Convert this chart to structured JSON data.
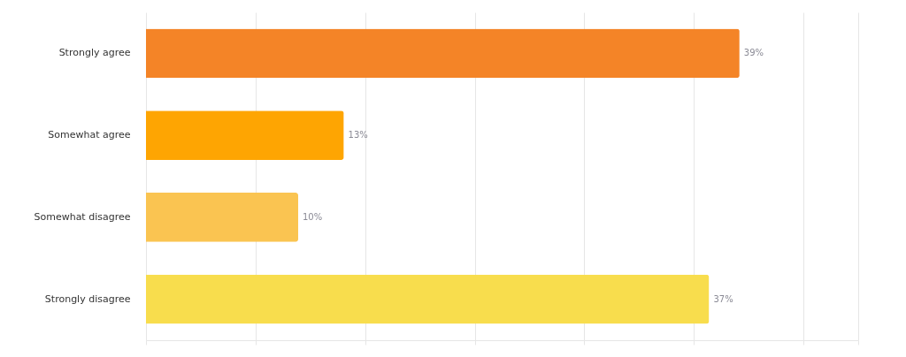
{
  "chart_data": {
    "type": "bar",
    "orientation": "horizontal",
    "categories": [
      "Strongly agree",
      "Somewhat agree",
      "Somewhat disagree",
      "Strongly disagree"
    ],
    "values": [
      39,
      13,
      10,
      37
    ],
    "colors": [
      "#f48427",
      "#fea502",
      "#fac451",
      "#f8dd4d"
    ],
    "value_labels": [
      "39%",
      "13%",
      "10%",
      "37%"
    ],
    "xlim": [
      0,
      46.8
    ],
    "xticks": [
      {
        "value": 0,
        "label": null
      },
      {
        "value": 7.2,
        "label": null
      },
      {
        "value": 14.4,
        "label": null
      },
      {
        "value": 21.6,
        "label": null
      },
      {
        "value": 28.8,
        "label": null
      },
      {
        "value": 36,
        "label": null
      },
      {
        "value": 43.2,
        "label": null
      },
      {
        "value": 46.8,
        "label": null
      }
    ],
    "grid": "x",
    "tick_labels": "y"
  }
}
